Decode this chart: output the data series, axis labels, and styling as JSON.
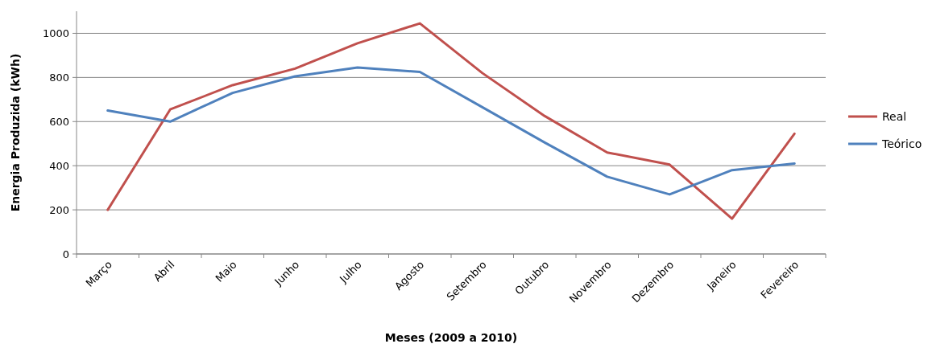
{
  "chart_data": {
    "type": "line",
    "xlabel": "Meses (2009  a 2010)",
    "ylabel": "Energia Produzida (kWh)",
    "categories": [
      "Março",
      "Abril",
      "Maio",
      "Junho",
      "Julho",
      "Agosto",
      "Setembro",
      "Outubro",
      "Novembro",
      "Dezembro",
      "Janeiro",
      "Fevereiro"
    ],
    "series": [
      {
        "name": "Real",
        "color": "#c0504d",
        "values": [
          200,
          655,
          765,
          840,
          955,
          1045,
          820,
          625,
          460,
          405,
          160,
          545
        ]
      },
      {
        "name": "Teórico",
        "color": "#4f81bd",
        "values": [
          650,
          600,
          730,
          805,
          845,
          825,
          665,
          505,
          350,
          270,
          380,
          410
        ]
      }
    ],
    "ylim": [
      0,
      1100
    ],
    "yticks": [
      0,
      200,
      400,
      600,
      800,
      1000
    ],
    "grid": "y",
    "legend": "right",
    "marker": "none",
    "line_style": "solid"
  }
}
